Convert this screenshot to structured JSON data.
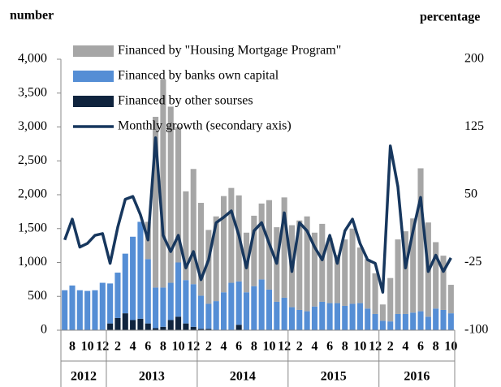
{
  "chart_data": {
    "type": "bar",
    "y_axis_label": "number",
    "y2_axis_label": "percentage",
    "categories": [
      null,
      "8",
      null,
      "10",
      null,
      "12",
      null,
      "2",
      null,
      "4",
      null,
      "6",
      null,
      "8",
      null,
      "10",
      null,
      "12",
      null,
      "2",
      null,
      "4",
      null,
      "6",
      null,
      "8",
      null,
      "10",
      null,
      "12",
      null,
      "2",
      null,
      "4",
      null,
      "6",
      null,
      "8",
      null,
      "10",
      null,
      "12",
      null,
      "2",
      null,
      "4",
      null,
      "6",
      null,
      "8",
      null,
      "10"
    ],
    "years": [
      "2012",
      "2013",
      "2014",
      "2015",
      "2016"
    ],
    "series": [
      {
        "name": "Financed by \"Housing Mortgage Program\"",
        "color": "#a6a6a6",
        "values": [
          0,
          0,
          0,
          0,
          0,
          0,
          0,
          0,
          0,
          0,
          0,
          550,
          2520,
          3070,
          2600,
          2000,
          1310,
          1700,
          1370,
          1090,
          1250,
          1420,
          1400,
          1270,
          880,
          1040,
          1120,
          1320,
          1100,
          1480,
          1210,
          1320,
          1400,
          1090,
          1150,
          960,
          710,
          980,
          1110,
          820,
          730,
          600,
          240,
          640,
          1100,
          1220,
          1390,
          2110,
          1390,
          980,
          800,
          420
        ]
      },
      {
        "name": "Financed by banks own capital",
        "color": "#558ed5",
        "values": [
          590,
          660,
          590,
          580,
          590,
          700,
          590,
          670,
          880,
          1230,
          1430,
          950,
          600,
          580,
          550,
          800,
          640,
          630,
          490,
          370,
          430,
          560,
          700,
          640,
          560,
          650,
          750,
          600,
          420,
          480,
          340,
          300,
          280,
          350,
          420,
          400,
          400,
          360,
          390,
          400,
          320,
          240,
          140,
          130,
          240,
          240,
          260,
          280,
          200,
          320,
          300,
          250
        ]
      },
      {
        "name": "Financed by other sourses",
        "color": "#10243e",
        "values": [
          0,
          0,
          0,
          0,
          0,
          0,
          100,
          180,
          250,
          150,
          170,
          100,
          30,
          50,
          150,
          200,
          100,
          50,
          20,
          20,
          0,
          0,
          0,
          80,
          0,
          0,
          0,
          0,
          0,
          0,
          0,
          0,
          0,
          0,
          0,
          0,
          0,
          0,
          0,
          0,
          0,
          0,
          0,
          0,
          0,
          0,
          0,
          0,
          0,
          0,
          0,
          0
        ]
      },
      {
        "name": "Monthly growth (secondary axis)",
        "color": "#17375e",
        "type": "line",
        "axis": "y2",
        "values": [
          0,
          23,
          -8,
          -4,
          5,
          7,
          -26,
          14,
          45,
          48,
          28,
          0,
          113,
          5,
          -13,
          5,
          -31,
          -13,
          -44,
          -22,
          19,
          25,
          32,
          5,
          -31,
          10,
          19,
          -4,
          -26,
          30,
          -35,
          19,
          10,
          -8,
          -22,
          5,
          -26,
          10,
          23,
          -4,
          -22,
          -26,
          -58,
          104,
          59,
          -31,
          10,
          47,
          -35,
          -17,
          -35,
          -20
        ]
      }
    ],
    "ylim": [
      0,
      4000
    ],
    "yticks": [
      0,
      500,
      {
        "value": 1000,
        "label": "1,000"
      },
      {
        "value": 1500,
        "label": "1,500"
      },
      {
        "value": 2000,
        "label": "2,000"
      },
      {
        "value": 2500,
        "label": "2,500"
      },
      {
        "value": 3000,
        "label": "3,000"
      },
      {
        "value": 3500,
        "label": "3,500"
      },
      {
        "value": 4000,
        "label": "4,000"
      }
    ],
    "y2lim": [
      -100,
      200
    ],
    "y2ticks": [
      -100,
      -25,
      50,
      125,
      200
    ],
    "legend": "top-left",
    "grid": false
  }
}
